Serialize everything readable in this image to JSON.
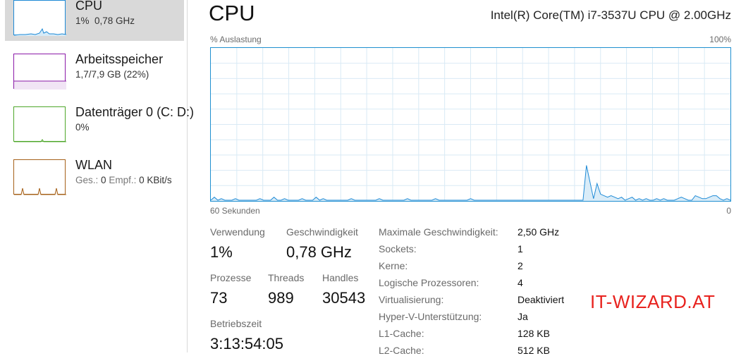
{
  "sidebar": {
    "items": [
      {
        "title": "CPU",
        "sub_a": "1%",
        "sub_b": "0,78 GHz",
        "color": "#1e8ad6",
        "fill": "#d6ebf8",
        "selected": true
      },
      {
        "title": "Arbeitsspeicher",
        "sub": "1,7/7,9 GB (22%)",
        "color": "#8b1aa8",
        "fill": "#f1e4f5"
      },
      {
        "title": "Datenträger 0 (C: D:)",
        "sub": "0%",
        "color": "#4ea72a",
        "fill": "#e6f3df"
      },
      {
        "title": "WLAN",
        "sub_lbl1": "Ges.:",
        "sub_val1": "0",
        "sub_lbl2": "Empf.:",
        "sub_val2": "0 KBit/s",
        "color": "#a6611a",
        "fill": "#f6ecdf"
      }
    ]
  },
  "main": {
    "title": "CPU",
    "processor": "Intel(R) Core(TM) i7-3537U CPU @ 2.00GHz",
    "graph": {
      "y_label": "% Auslastung",
      "y_max": "100%",
      "x_left": "60 Sekunden",
      "x_right": "0",
      "line_color": "#1e8ad6",
      "fill_color": "#d9ecf8",
      "grid_color": "#d9eaf5",
      "values": [
        0,
        2,
        0,
        1,
        0,
        0,
        0,
        1,
        0,
        0,
        0,
        0,
        0,
        0,
        1,
        0,
        0,
        0,
        2,
        0,
        0,
        1,
        0,
        0,
        0,
        0,
        1,
        0,
        0,
        0,
        2,
        0,
        1,
        0,
        0,
        0,
        0,
        0,
        0,
        0,
        1,
        0,
        0,
        0,
        0,
        0,
        0,
        0,
        1,
        0,
        0,
        0,
        0,
        0,
        0,
        0,
        1,
        0,
        0,
        0,
        0,
        0,
        0,
        0,
        1,
        0,
        0,
        0,
        0,
        0,
        0,
        0,
        0,
        0,
        1,
        0,
        0,
        0,
        0,
        0,
        0,
        0,
        0,
        0,
        0,
        0,
        0,
        0,
        0,
        0,
        0,
        0,
        0,
        0,
        0,
        0,
        0,
        0,
        0,
        0,
        0,
        0,
        0,
        0,
        0,
        0,
        0,
        23,
        12,
        1,
        11,
        4,
        3,
        2,
        3,
        2,
        1,
        2,
        0,
        1,
        2,
        0,
        1,
        0,
        1,
        0,
        0,
        1,
        0,
        1,
        0,
        0,
        0,
        1,
        2,
        1,
        0,
        0,
        3,
        2,
        1,
        1,
        2,
        3,
        3,
        1,
        0,
        1,
        0
      ]
    },
    "stats": {
      "usage_label": "Verwendung",
      "usage_value": "1%",
      "speed_label": "Geschwindigkeit",
      "speed_value": "0,78 GHz",
      "processes_label": "Prozesse",
      "processes_value": "73",
      "threads_label": "Threads",
      "threads_value": "989",
      "handles_label": "Handles",
      "handles_value": "30543",
      "uptime_label": "Betriebszeit",
      "uptime_value": "3:13:54:05"
    },
    "details": [
      {
        "key": "Maximale Geschwindigkeit:",
        "value": "2,50 GHz"
      },
      {
        "key": "Sockets:",
        "value": "1"
      },
      {
        "key": "Kerne:",
        "value": "2"
      },
      {
        "key": "Logische Prozessoren:",
        "value": "4"
      },
      {
        "key": "Virtualisierung:",
        "value": "Deaktiviert"
      },
      {
        "key": "Hyper-V-Unterstützung:",
        "value": "Ja"
      },
      {
        "key": "L1-Cache:",
        "value": "128 KB"
      },
      {
        "key": "L2-Cache:",
        "value": "512 KB"
      }
    ],
    "watermark": "IT-WIZARD.AT"
  }
}
